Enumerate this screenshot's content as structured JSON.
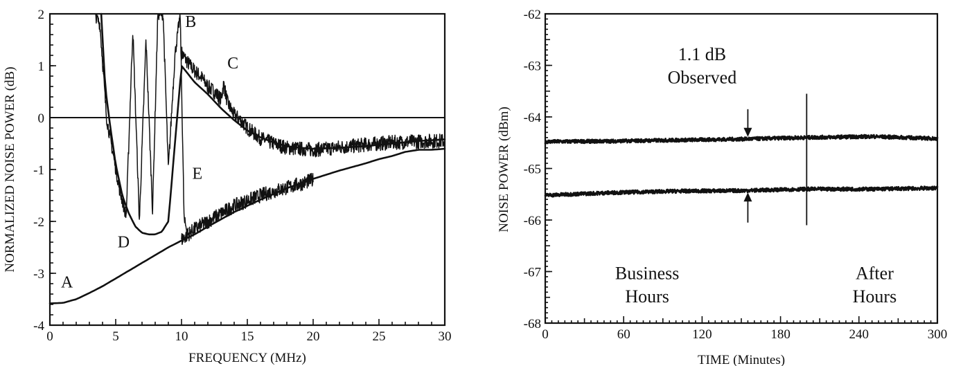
{
  "chart_data": [
    {
      "type": "line",
      "xlabel": "FREQUENCY (MHz)",
      "ylabel": "NORMALIZED NOISE POWER (dB)",
      "xlim": [
        0,
        30
      ],
      "ylim": [
        -4,
        2
      ],
      "xticks": [
        "0",
        "5",
        "10",
        "15",
        "20",
        "25",
        "30"
      ],
      "yticks": [
        "2",
        "1",
        "0",
        "-1",
        "-2",
        "-3",
        "-4"
      ],
      "reference_line_y": 0,
      "series": [
        {
          "name": "A",
          "style": "smooth",
          "x": [
            0,
            1,
            2,
            3,
            4,
            5,
            6,
            7,
            8,
            9,
            10,
            11,
            12,
            13,
            14,
            15,
            16,
            17,
            18,
            19,
            20,
            21,
            22,
            23,
            24,
            25,
            26,
            27,
            28,
            29,
            30
          ],
          "y": [
            -3.58,
            -3.57,
            -3.5,
            -3.38,
            -3.25,
            -3.1,
            -2.95,
            -2.8,
            -2.65,
            -2.5,
            -2.37,
            -2.25,
            -2.1,
            -1.96,
            -1.82,
            -1.7,
            -1.58,
            -1.47,
            -1.36,
            -1.27,
            -1.18,
            -1.1,
            -1.02,
            -0.95,
            -0.88,
            -0.8,
            -0.74,
            -0.66,
            -0.62,
            -0.62,
            -0.6
          ]
        },
        {
          "name": "B",
          "style": "smooth",
          "x": [
            3.9,
            4.2,
            4.6,
            5.0,
            5.5,
            6.0,
            6.5,
            7.0,
            7.5,
            8.0,
            8.5,
            9.0,
            10.0,
            11.0,
            12.0,
            13.0,
            14.0,
            15.0,
            16.0,
            17.0,
            18.0,
            19.0,
            20.0,
            22.0,
            24.0,
            26.0,
            28.0,
            30.0
          ],
          "y": [
            2.0,
            0.6,
            -0.2,
            -0.9,
            -1.5,
            -1.85,
            -2.1,
            -2.22,
            -2.25,
            -2.25,
            -2.2,
            -2.0,
            1.0,
            0.68,
            0.45,
            0.18,
            -0.05,
            -0.25,
            -0.38,
            -0.48,
            -0.55,
            -0.58,
            -0.6,
            -0.58,
            -0.55,
            -0.5,
            -0.45,
            -0.42
          ]
        },
        {
          "name": "C",
          "style": "noisy",
          "x": [
            10,
            10.5,
            11,
            11.5,
            12,
            12.5,
            13,
            13.2,
            13.5,
            14,
            14.5,
            15,
            16,
            17,
            18,
            19,
            20,
            21,
            22,
            23,
            24,
            25,
            26,
            27,
            28,
            29,
            30
          ],
          "y": [
            1.25,
            1.05,
            0.9,
            0.78,
            0.6,
            0.5,
            0.35,
            0.65,
            0.28,
            0.05,
            -0.05,
            -0.2,
            -0.4,
            -0.5,
            -0.58,
            -0.6,
            -0.62,
            -0.6,
            -0.57,
            -0.55,
            -0.52,
            -0.5,
            -0.48,
            -0.47,
            -0.46,
            -0.45,
            -0.45
          ]
        },
        {
          "name": "D",
          "style": "noisy",
          "x": [
            3.4,
            3.8,
            4.3,
            4.8,
            5.3,
            5.8,
            6.3,
            6.8,
            7.3,
            7.8,
            8.2,
            8.6,
            9.0,
            9.5,
            9.9,
            10.2,
            10.5
          ],
          "y": [
            2.0,
            1.8,
            0.0,
            -0.7,
            -1.4,
            -1.9,
            1.7,
            -2.0,
            1.5,
            -1.8,
            2.0,
            2.0,
            -1.0,
            1.2,
            2.0,
            -2.0,
            -2.2
          ]
        },
        {
          "name": "E",
          "style": "noisy",
          "x": [
            10,
            11,
            12,
            13,
            14,
            15,
            16,
            17,
            18,
            19,
            20
          ],
          "y": [
            -2.35,
            -2.15,
            -2.0,
            -1.85,
            -1.7,
            -1.6,
            -1.5,
            -1.42,
            -1.35,
            -1.28,
            -1.2
          ]
        }
      ],
      "curve_labels": [
        {
          "text": "A",
          "x": 1.3,
          "y": -3.27
        },
        {
          "text": "B",
          "x": 10.7,
          "y": 1.75
        },
        {
          "text": "C",
          "x": 13.9,
          "y": 0.95
        },
        {
          "text": "D",
          "x": 5.6,
          "y": -2.5
        },
        {
          "text": "E",
          "x": 11.2,
          "y": -1.18
        }
      ]
    },
    {
      "type": "line",
      "xlabel": "TIME (Minutes)",
      "ylabel": "NOISE POWER (dBm)",
      "xlim": [
        0,
        300
      ],
      "ylim": [
        -68,
        -62
      ],
      "xticks": [
        "0",
        "60",
        "120",
        "180",
        "240",
        "300"
      ],
      "yticks": [
        "-62",
        "-63",
        "-64",
        "-65",
        "-66",
        "-67",
        "-68"
      ],
      "series": [
        {
          "name": "upper trace",
          "style": "noisy",
          "x": [
            0,
            50,
            100,
            150,
            200,
            250,
            300
          ],
          "y": [
            -64.48,
            -64.47,
            -64.45,
            -64.43,
            -64.4,
            -64.38,
            -64.42
          ]
        },
        {
          "name": "lower trace",
          "style": "noisy",
          "x": [
            0,
            50,
            100,
            150,
            200,
            250,
            300
          ],
          "y": [
            -65.52,
            -65.47,
            -65.44,
            -65.43,
            -65.4,
            -65.4,
            -65.38
          ]
        }
      ],
      "annotations": [
        {
          "text": "1.1 dB",
          "x": 120,
          "y": -62.9
        },
        {
          "text": "Observed",
          "x": 120,
          "y": -63.35
        },
        {
          "text": "Business",
          "x": 78,
          "y": -67.15
        },
        {
          "text": "Hours",
          "x": 78,
          "y": -67.6
        },
        {
          "text": "After",
          "x": 252,
          "y": -67.15
        },
        {
          "text": "Hours",
          "x": 252,
          "y": -67.6
        }
      ],
      "marker_time": 155,
      "divider_time": 200
    }
  ]
}
